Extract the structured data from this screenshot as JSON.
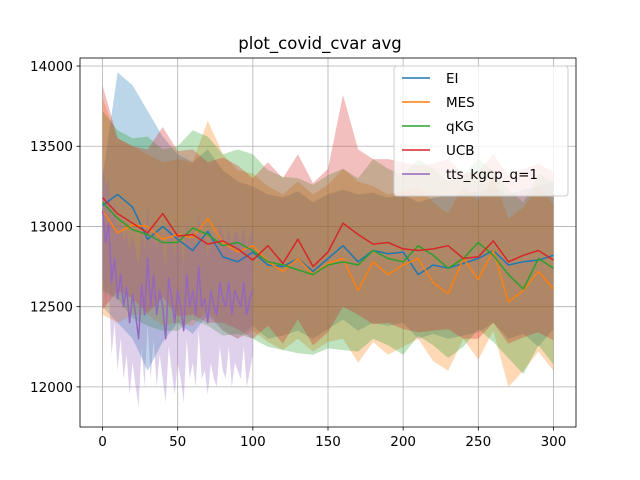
{
  "chart_data": {
    "type": "line",
    "title": "plot_covid_cvar avg",
    "xlabel": "",
    "ylabel": "",
    "xlim": [
      -15,
      315
    ],
    "ylim": [
      11750,
      14050
    ],
    "x_ticks": [
      0,
      50,
      100,
      150,
      200,
      250,
      300
    ],
    "y_ticks": [
      12000,
      12500,
      13000,
      13500,
      14000
    ],
    "grid": true,
    "legend_position": "upper right",
    "series": [
      {
        "name": "EI",
        "color": "#1f77b4",
        "x": [
          0,
          10,
          20,
          30,
          40,
          50,
          60,
          70,
          80,
          90,
          100,
          110,
          120,
          130,
          140,
          150,
          160,
          170,
          180,
          190,
          200,
          210,
          220,
          230,
          240,
          250,
          260,
          270,
          280,
          290,
          300
        ],
        "values": [
          13130,
          13200,
          13120,
          12920,
          13000,
          12920,
          12850,
          12970,
          12810,
          12780,
          12840,
          12760,
          12750,
          12800,
          12720,
          12800,
          12880,
          12780,
          12850,
          12830,
          12840,
          12700,
          12760,
          12740,
          12770,
          12800,
          12850,
          12760,
          12780,
          12790,
          12820
        ],
        "upper": [
          13300,
          13960,
          13880,
          13720,
          13560,
          13450,
          13400,
          13480,
          13350,
          13280,
          13250,
          13200,
          13180,
          13220,
          13150,
          13200,
          13230,
          13200,
          13210,
          13180,
          13200,
          13150,
          13180,
          13190,
          13200,
          13220,
          13250,
          13200,
          13230,
          13250,
          13280
        ],
        "lower": [
          12500,
          12400,
          12300,
          12100,
          12280,
          12400,
          12330,
          12450,
          12350,
          12300,
          12380,
          12300,
          12320,
          12350,
          12300,
          12360,
          12420,
          12350,
          12400,
          12380,
          12400,
          12300,
          12330,
          12300,
          12320,
          12340,
          12400,
          12300,
          12330,
          12250,
          12360
        ]
      },
      {
        "name": "MES",
        "color": "#ff7f0e",
        "x": [
          0,
          10,
          20,
          30,
          40,
          50,
          60,
          70,
          80,
          90,
          100,
          110,
          120,
          130,
          140,
          150,
          160,
          170,
          180,
          190,
          200,
          210,
          220,
          230,
          240,
          250,
          260,
          270,
          280,
          290,
          300
        ],
        "values": [
          13100,
          12960,
          13010,
          13000,
          12920,
          12950,
          12930,
          13050,
          12900,
          12840,
          12880,
          12780,
          12720,
          12800,
          12700,
          12770,
          12800,
          12600,
          12780,
          12700,
          12760,
          12800,
          12650,
          12580,
          12800,
          12670,
          12850,
          12530,
          12600,
          12720,
          12610
        ],
        "upper": [
          13800,
          13550,
          13500,
          13450,
          13400,
          13420,
          13400,
          13660,
          13450,
          13350,
          13330,
          13250,
          13200,
          13280,
          13200,
          13260,
          13360,
          13280,
          13250,
          13200,
          13220,
          13250,
          13150,
          13080,
          13250,
          13160,
          13320,
          13050,
          13120,
          13250,
          13140
        ],
        "lower": [
          12450,
          12400,
          12450,
          12450,
          12380,
          12400,
          12380,
          12480,
          12350,
          12300,
          12350,
          12280,
          12230,
          12300,
          12220,
          12280,
          12300,
          12150,
          12280,
          12200,
          12250,
          12300,
          12160,
          12100,
          12300,
          12170,
          12350,
          12000,
          12100,
          12220,
          12100
        ]
      },
      {
        "name": "qKG",
        "color": "#2ca02c",
        "x": [
          0,
          10,
          20,
          30,
          40,
          50,
          60,
          70,
          80,
          90,
          100,
          110,
          120,
          130,
          140,
          150,
          160,
          170,
          180,
          190,
          200,
          210,
          220,
          230,
          240,
          250,
          260,
          270,
          280,
          290,
          300
        ],
        "values": [
          13150,
          13050,
          12980,
          12950,
          12900,
          12900,
          12990,
          12950,
          12880,
          12900,
          12850,
          12780,
          12760,
          12730,
          12700,
          12760,
          12780,
          12760,
          12850,
          12800,
          12780,
          12880,
          12820,
          12740,
          12800,
          12900,
          12820,
          12700,
          12610,
          12800,
          12740
        ],
        "upper": [
          13720,
          13600,
          13550,
          13560,
          13480,
          13500,
          13600,
          13560,
          13450,
          13480,
          13450,
          13350,
          13310,
          13300,
          13260,
          13320,
          13360,
          13300,
          13420,
          13360,
          13320,
          13420,
          13360,
          13280,
          13320,
          13420,
          13350,
          13230,
          13150,
          13330,
          13280
        ],
        "lower": [
          12600,
          12550,
          12430,
          12380,
          12350,
          12350,
          12420,
          12380,
          12320,
          12330,
          12300,
          12250,
          12230,
          12210,
          12200,
          12240,
          12230,
          12220,
          12300,
          12260,
          12200,
          12320,
          12260,
          12180,
          12250,
          12360,
          12280,
          12180,
          12080,
          12260,
          12140
        ]
      },
      {
        "name": "UCB",
        "color": "#d62728",
        "x": [
          0,
          10,
          20,
          30,
          40,
          50,
          60,
          70,
          80,
          90,
          100,
          110,
          120,
          130,
          140,
          150,
          160,
          170,
          180,
          190,
          200,
          210,
          220,
          230,
          240,
          250,
          260,
          270,
          280,
          290,
          300
        ],
        "values": [
          13180,
          13080,
          13020,
          12960,
          13080,
          12940,
          12950,
          12890,
          12910,
          12860,
          12790,
          12880,
          12770,
          12920,
          12750,
          12840,
          13020,
          12950,
          12890,
          12900,
          12860,
          12850,
          12860,
          12880,
          12800,
          12810,
          12910,
          12780,
          12820,
          12850,
          12790
        ],
        "upper": [
          13880,
          13550,
          13500,
          13480,
          13620,
          13470,
          13480,
          13400,
          13430,
          13380,
          13300,
          13400,
          13300,
          13450,
          13270,
          13360,
          13820,
          13480,
          13420,
          13420,
          13400,
          13380,
          13390,
          13420,
          13330,
          13340,
          13450,
          13320,
          13360,
          13390,
          13340
        ],
        "lower": [
          12480,
          12600,
          12550,
          12460,
          12560,
          12440,
          12450,
          12400,
          12400,
          12360,
          12300,
          12380,
          12270,
          12420,
          12260,
          12340,
          12500,
          12450,
          12390,
          12400,
          12360,
          12340,
          12350,
          12360,
          12300,
          12300,
          12400,
          12270,
          12310,
          12340,
          12290
        ]
      },
      {
        "name": "tts_kgcp_q=1",
        "color": "#9467bd",
        "x": [
          0,
          2,
          4,
          6,
          8,
          10,
          12,
          14,
          16,
          18,
          20,
          22,
          24,
          26,
          28,
          30,
          32,
          34,
          36,
          38,
          40,
          42,
          44,
          46,
          48,
          50,
          52,
          54,
          56,
          58,
          60,
          62,
          64,
          66,
          68,
          70,
          72,
          74,
          76,
          78,
          80,
          82,
          84,
          86,
          88,
          90,
          92,
          94,
          96,
          98,
          100
        ],
        "values": [
          13100,
          12900,
          13020,
          12650,
          12800,
          12550,
          12700,
          12500,
          12620,
          12400,
          12580,
          12450,
          12300,
          12640,
          12450,
          12800,
          12500,
          12700,
          12450,
          12600,
          12500,
          12300,
          12680,
          12550,
          12400,
          12600,
          12500,
          12350,
          12700,
          12500,
          12600,
          12450,
          12750,
          12500,
          12550,
          12400,
          12600,
          12500,
          12450,
          12650,
          12550,
          12500,
          12650,
          12450,
          12600,
          12550,
          12500,
          12650,
          12450,
          12550,
          12600
        ],
        "upper": [
          13400,
          13250,
          13300,
          13050,
          13150,
          12950,
          13050,
          12900,
          12980,
          12850,
          12950,
          12850,
          12750,
          13000,
          12850,
          13150,
          12880,
          13050,
          12850,
          12980,
          12900,
          12750,
          13050,
          12950,
          12800,
          13000,
          12900,
          12750,
          13050,
          12900,
          12980,
          12850,
          13100,
          12900,
          12950,
          12800,
          12980,
          12900,
          12850,
          13020,
          12950,
          12900,
          13000,
          12850,
          12980,
          12950,
          12900,
          13020,
          12850,
          12950,
          12980
        ],
        "lower": [
          12700,
          12500,
          12650,
          12200,
          12400,
          12100,
          12300,
          12050,
          12200,
          11950,
          12150,
          12000,
          11880,
          12250,
          12000,
          12400,
          12050,
          12300,
          12000,
          12200,
          12050,
          11900,
          12250,
          12100,
          11950,
          12150,
          12050,
          11900,
          12300,
          12050,
          12150,
          12000,
          12350,
          12050,
          12100,
          11950,
          12150,
          12050,
          12000,
          12250,
          12100,
          12050,
          12250,
          12000,
          12150,
          12100,
          12050,
          12250,
          12000,
          12100,
          12200
        ]
      }
    ]
  }
}
